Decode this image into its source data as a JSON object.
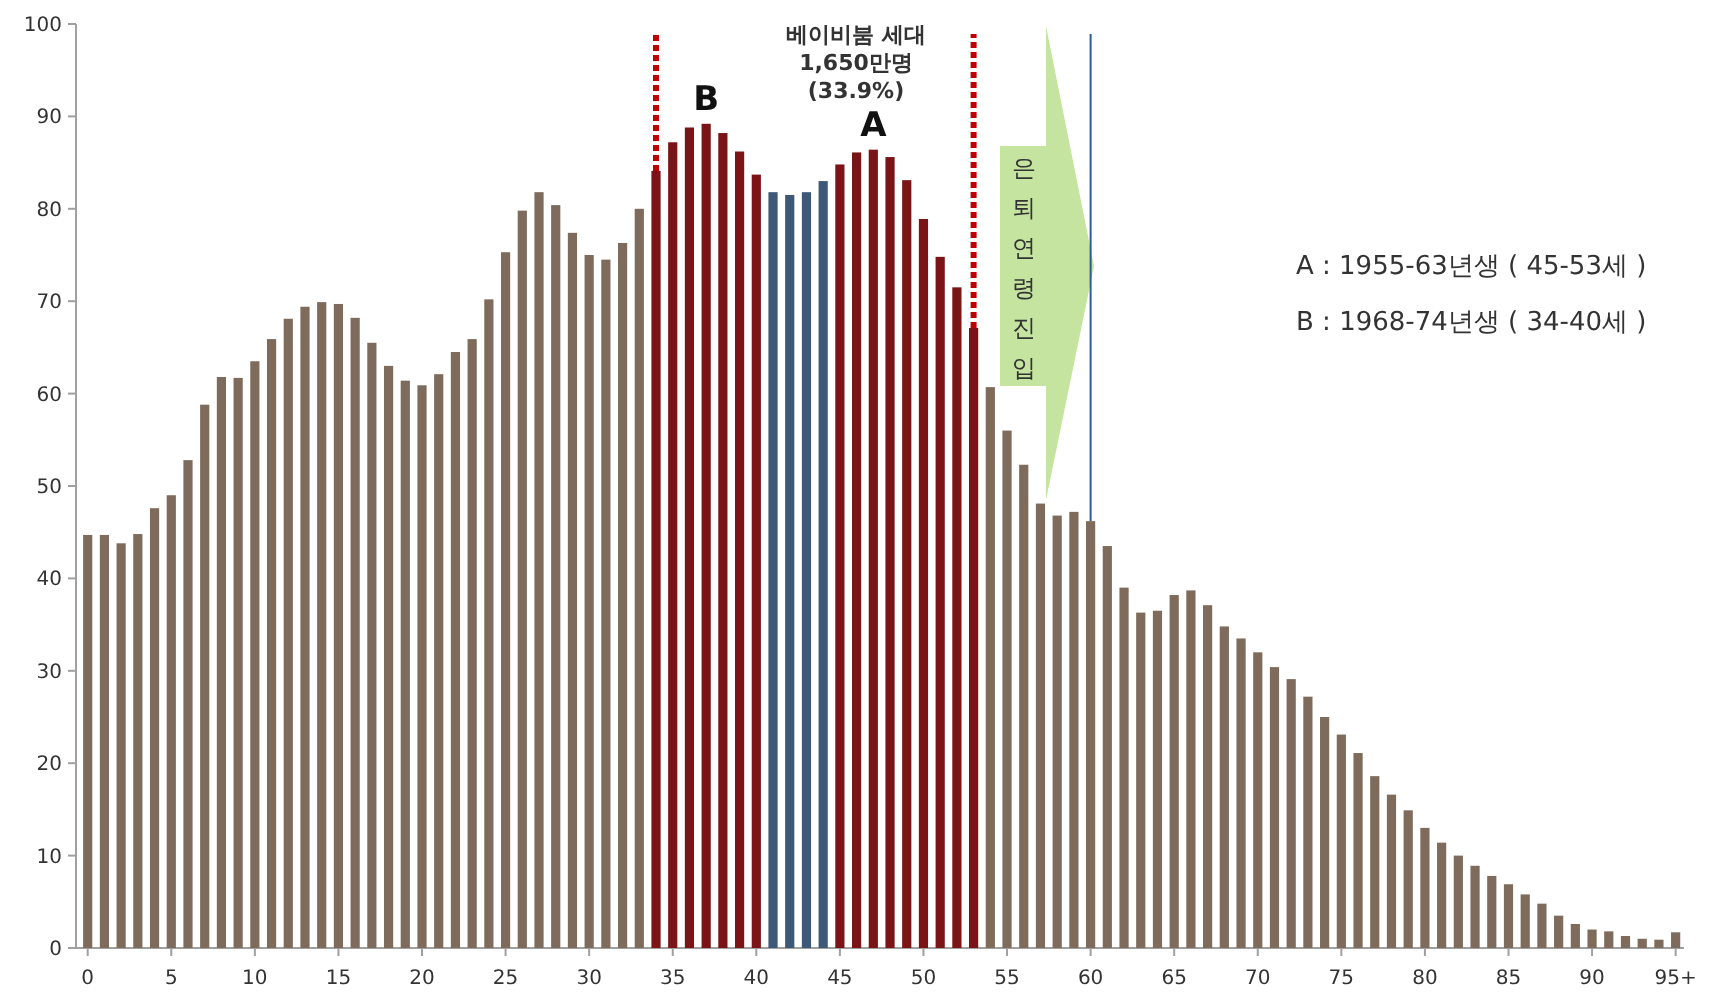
{
  "chart_data": {
    "type": "bar",
    "x": [
      0,
      1,
      2,
      3,
      4,
      5,
      6,
      7,
      8,
      9,
      10,
      11,
      12,
      13,
      14,
      15,
      16,
      17,
      18,
      19,
      20,
      21,
      22,
      23,
      24,
      25,
      26,
      27,
      28,
      29,
      30,
      31,
      32,
      33,
      34,
      35,
      36,
      37,
      38,
      39,
      40,
      41,
      42,
      43,
      44,
      45,
      46,
      47,
      48,
      49,
      50,
      51,
      52,
      53,
      54,
      55,
      56,
      57,
      58,
      59,
      60,
      61,
      62,
      63,
      64,
      65,
      66,
      67,
      68,
      69,
      70,
      71,
      72,
      73,
      74,
      75,
      76,
      77,
      78,
      79,
      80,
      81,
      82,
      83,
      84,
      85,
      86,
      87,
      88,
      89,
      90,
      91,
      92,
      93,
      94,
      95
    ],
    "values": [
      44.7,
      44.7,
      43.8,
      44.8,
      47.6,
      49.0,
      52.8,
      58.8,
      61.8,
      61.7,
      63.5,
      65.9,
      68.1,
      69.4,
      69.9,
      69.7,
      68.2,
      65.5,
      63.0,
      61.4,
      60.9,
      62.1,
      64.5,
      65.9,
      70.2,
      75.3,
      79.8,
      81.8,
      80.4,
      77.4,
      75.0,
      74.5,
      76.3,
      80.0,
      84.1,
      87.2,
      88.8,
      89.2,
      88.2,
      86.2,
      83.7,
      81.8,
      81.5,
      81.8,
      83.0,
      84.8,
      86.1,
      86.4,
      85.6,
      83.1,
      78.9,
      74.8,
      71.5,
      67.1,
      60.7,
      56.0,
      52.3,
      48.1,
      46.8,
      47.2,
      46.2,
      43.5,
      39.0,
      36.3,
      36.5,
      38.2,
      38.7,
      37.1,
      34.8,
      33.5,
      32.0,
      30.4,
      29.1,
      27.2,
      25.0,
      23.1,
      21.1,
      18.6,
      16.6,
      14.9,
      13.0,
      11.4,
      10.0,
      8.9,
      7.8,
      6.9,
      5.8,
      4.8,
      3.5,
      2.6,
      2.0,
      1.8,
      1.3,
      1.0,
      0.9,
      1.7
    ],
    "colors": [
      "#7f6b5b",
      "#7f6b5b",
      "#7f6b5b",
      "#7f6b5b",
      "#7f6b5b",
      "#7f6b5b",
      "#7f6b5b",
      "#7f6b5b",
      "#7f6b5b",
      "#7f6b5b",
      "#7f6b5b",
      "#7f6b5b",
      "#7f6b5b",
      "#7f6b5b",
      "#7f6b5b",
      "#7f6b5b",
      "#7f6b5b",
      "#7f6b5b",
      "#7f6b5b",
      "#7f6b5b",
      "#7f6b5b",
      "#7f6b5b",
      "#7f6b5b",
      "#7f6b5b",
      "#7f6b5b",
      "#7f6b5b",
      "#7f6b5b",
      "#7f6b5b",
      "#7f6b5b",
      "#7f6b5b",
      "#7f6b5b",
      "#7f6b5b",
      "#7f6b5b",
      "#7f6b5b",
      "#7b1416",
      "#7b1416",
      "#7b1416",
      "#7b1416",
      "#7b1416",
      "#7b1416",
      "#7b1416",
      "#3e5878",
      "#3e5878",
      "#3e5878",
      "#3e5878",
      "#7b1416",
      "#7b1416",
      "#7b1416",
      "#7b1416",
      "#7b1416",
      "#7b1416",
      "#7b1416",
      "#7b1416",
      "#7b1416",
      "#7f6b5b",
      "#7f6b5b",
      "#7f6b5b",
      "#7f6b5b",
      "#7f6b5b",
      "#7f6b5b",
      "#7f6b5b",
      "#7f6b5b",
      "#7f6b5b",
      "#7f6b5b",
      "#7f6b5b",
      "#7f6b5b",
      "#7f6b5b",
      "#7f6b5b",
      "#7f6b5b",
      "#7f6b5b",
      "#7f6b5b",
      "#7f6b5b",
      "#7f6b5b",
      "#7f6b5b",
      "#7f6b5b",
      "#7f6b5b",
      "#7f6b5b",
      "#7f6b5b",
      "#7f6b5b",
      "#7f6b5b",
      "#7f6b5b",
      "#7f6b5b",
      "#7f6b5b",
      "#7f6b5b",
      "#7f6b5b",
      "#7f6b5b",
      "#7f6b5b",
      "#7f6b5b",
      "#7f6b5b",
      "#7f6b5b",
      "#7f6b5b",
      "#7f6b5b",
      "#7f6b5b",
      "#7f6b5b",
      "#7f6b5b",
      "#7f6b5b"
    ],
    "xlim": [
      -0.7,
      95.5
    ],
    "xticks": [
      0,
      5,
      10,
      15,
      20,
      25,
      30,
      35,
      40,
      45,
      50,
      55,
      60,
      65,
      70,
      75,
      80,
      85,
      90,
      {
        "value": 95,
        "label": "95+"
      }
    ],
    "ylim": [
      0,
      100
    ],
    "yticks": [
      0,
      10,
      20,
      30,
      40,
      50,
      60,
      70,
      80,
      90,
      100
    ],
    "ref_lines": [
      {
        "axis": "x",
        "value": 34,
        "color": "#c00000",
        "line_style": "dotted"
      },
      {
        "axis": "x",
        "value": 53,
        "color": "#c00000",
        "line_style": "dotted"
      },
      {
        "axis": "x",
        "value": 60,
        "color": "#2e5c99",
        "line_style": "solid"
      }
    ],
    "annotations": [
      "베이비붐 세대",
      "1,650만명",
      "(33.9%)",
      {
        "text": "B",
        "x": 37,
        "y": 89.2
      },
      {
        "text": "A",
        "x": 47,
        "y": 86.4
      },
      "은퇴연령진입",
      "A : 1955-63년생 ( 45-53세 )",
      "B : 1968-74년생 ( 34-40세 )"
    ]
  }
}
